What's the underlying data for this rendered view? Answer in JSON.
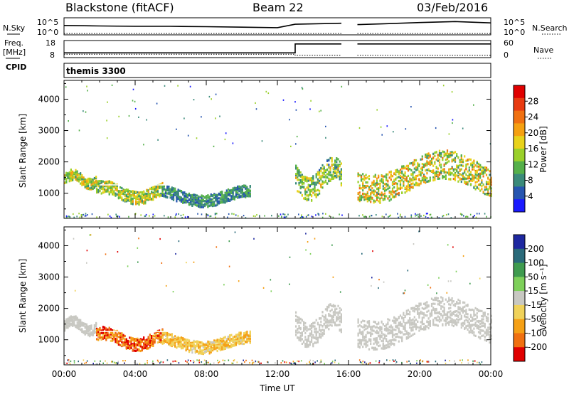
{
  "header": {
    "station": "Blackstone (fitACF)",
    "beam": "Beam 22",
    "date": "03/Feb/2016"
  },
  "left_labels": {
    "nsky": "N.Sky",
    "freq_line1": "Freq.",
    "freq_line2": "[MHz]",
    "cpid": "CPID"
  },
  "right_labels": {
    "nsearch": "N.Search",
    "nave": "Nave"
  },
  "cpid_value": "themis 3300",
  "chart_data": [
    {
      "type": "line",
      "panel": "noise",
      "ylabel_left": "N.Sky",
      "ylabel_right": "N.Search",
      "y_ticks_left": [
        "10^5",
        "10^0"
      ],
      "y_ticks_right": [
        "10^5",
        "10^0"
      ],
      "series": [
        {
          "name": "N.Sky",
          "style": "solid",
          "x": [
            0.0,
            2.0,
            4.0,
            6.0,
            8.0,
            10.0,
            12.0,
            13.0,
            15.6,
            16.5,
            18.0,
            20.0,
            22.0,
            24.0
          ],
          "y": [
            0.55,
            0.52,
            0.5,
            0.5,
            0.48,
            0.45,
            0.42,
            0.62,
            0.68,
            0.6,
            0.65,
            0.72,
            0.78,
            0.7
          ]
        },
        {
          "name": "N.Search",
          "style": "dotted",
          "x": [
            0.0,
            4.0,
            8.0,
            12.0,
            15.6,
            16.5,
            20.0,
            24.0
          ],
          "y": [
            0.08,
            0.08,
            0.08,
            0.08,
            0.08,
            0.08,
            0.08,
            0.08
          ]
        }
      ],
      "gaps": [
        [
          15.7,
          16.5
        ]
      ]
    },
    {
      "type": "line",
      "panel": "frequency",
      "ylabel_left": "Freq. [MHz]",
      "ylabel_right": "Nave",
      "y_ticks_left": [
        "18",
        "8"
      ],
      "y_ticks_right": [
        "60",
        "0"
      ],
      "ylim_left": [
        8,
        18
      ],
      "ylim_right": [
        0,
        60
      ],
      "series": [
        {
          "name": "Freq.",
          "style": "solid",
          "x": [
            0.0,
            13.0,
            13.0,
            15.6,
            16.5,
            24.0
          ],
          "y": [
            10.8,
            10.8,
            16.0,
            16.0,
            16.0,
            16.0
          ]
        },
        {
          "name": "Nave",
          "style": "dotted",
          "x": [
            0.0,
            13.0,
            13.0,
            15.6,
            16.5,
            24.0
          ],
          "y": [
            12,
            12,
            8,
            8,
            8,
            8
          ]
        }
      ],
      "gaps": [
        [
          15.7,
          16.5
        ]
      ]
    },
    {
      "type": "heatmap",
      "panel": "power",
      "ylabel": "Slant Range [km]",
      "xlabel": "",
      "y_ticks": [
        "1000",
        "2000",
        "3000",
        "4000"
      ],
      "x_ticks": [],
      "ylim": [
        200,
        4600
      ],
      "xlim": [
        0,
        24
      ],
      "colorbar_label": "Power [dB]",
      "colorbar_ticks": [
        "4",
        "8",
        "12",
        "16",
        "20",
        "24",
        "28"
      ],
      "colorbar_colors": [
        "#1a1aff",
        "#2655b0",
        "#3a8a7a",
        "#55b04a",
        "#9ad02a",
        "#e8d21a",
        "#f5a010",
        "#f07010",
        "#e83a10",
        "#e00000"
      ],
      "bands": [
        {
          "x": [
            0.0,
            1.8
          ],
          "r": [
            1300,
            1800
          ],
          "level": [
            8,
            22
          ]
        },
        {
          "x": [
            1.8,
            5.5
          ],
          "r": [
            850,
            1450
          ],
          "level": [
            8,
            22
          ]
        },
        {
          "x": [
            5.5,
            10.5
          ],
          "r": [
            750,
            1300
          ],
          "level": [
            4,
            12
          ]
        },
        {
          "x": [
            13.0,
            15.6
          ],
          "r": [
            1100,
            2200
          ],
          "level": [
            6,
            20
          ]
        },
        {
          "x": [
            16.5,
            24.0
          ],
          "r": [
            1100,
            2400
          ],
          "level": [
            8,
            24
          ]
        }
      ]
    },
    {
      "type": "heatmap",
      "panel": "velocity",
      "ylabel": "Slant Range [km]",
      "xlabel": "Time UT",
      "y_ticks": [
        "1000",
        "2000",
        "3000",
        "4000"
      ],
      "x_ticks": [
        "00:00",
        "04:00",
        "08:00",
        "12:00",
        "16:00",
        "20:00",
        "00:00"
      ],
      "ylim": [
        200,
        4600
      ],
      "xlim": [
        0,
        24
      ],
      "colorbar_label": "Velocity [m s⁻¹]",
      "colorbar_ticks": [
        "200",
        "100",
        "50",
        "15",
        "-15",
        "-50",
        "-100",
        "-200"
      ],
      "colorbar_colors": [
        "#1e28a0",
        "#2a6a7a",
        "#3f9b4f",
        "#7ed05a",
        "#c8c8c2",
        "#f0d25a",
        "#f5a015",
        "#f07010",
        "#e00000"
      ],
      "bands": [
        {
          "x": [
            0.0,
            1.8
          ],
          "r": [
            1300,
            1800
          ],
          "level": [
            -15,
            15
          ]
        },
        {
          "x": [
            1.8,
            5.5
          ],
          "r": [
            850,
            1450
          ],
          "level": [
            -200,
            -50
          ]
        },
        {
          "x": [
            5.5,
            10.5
          ],
          "r": [
            750,
            1300
          ],
          "level": [
            -100,
            -15
          ]
        },
        {
          "x": [
            13.0,
            15.6
          ],
          "r": [
            1100,
            2200
          ],
          "level": [
            -15,
            15
          ]
        },
        {
          "x": [
            16.5,
            24.0
          ],
          "r": [
            1100,
            2400
          ],
          "level": [
            -15,
            15
          ]
        }
      ]
    }
  ]
}
